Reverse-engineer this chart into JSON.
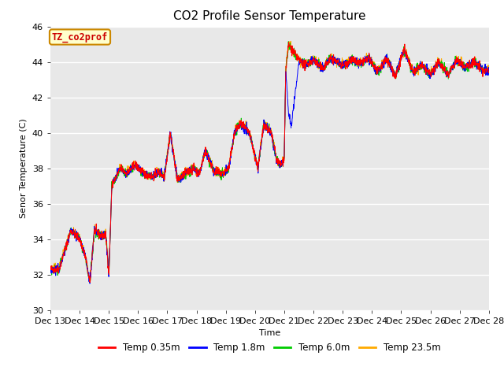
{
  "title": "CO2 Profile Sensor Temperature",
  "xlabel": "Time",
  "ylabel": "Senor Temperature (C)",
  "ylim": [
    30,
    46
  ],
  "xlim_days": [
    13,
    28
  ],
  "bg_color": "#e8e8e8",
  "annotation_text": "TZ_co2prof",
  "annotation_bg": "#ffffcc",
  "annotation_border": "#cc8800",
  "annotation_text_color": "#cc0000",
  "legend_entries": [
    "Temp 0.35m",
    "Temp 1.8m",
    "Temp 6.0m",
    "Temp 23.5m"
  ],
  "legend_colors": [
    "#ff0000",
    "#0000ff",
    "#00cc00",
    "#ffaa00"
  ],
  "title_fontsize": 11,
  "axis_fontsize": 8,
  "yticks": [
    30,
    32,
    34,
    36,
    38,
    40,
    42,
    44,
    46
  ],
  "tick_fontsize": 8,
  "legend_fontsize": 8.5
}
